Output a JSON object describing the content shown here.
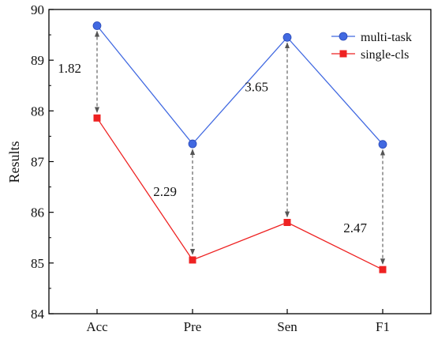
{
  "chart_data": {
    "type": "line",
    "categories": [
      "Acc",
      "Pre",
      "Sen",
      "F1"
    ],
    "series": [
      {
        "name": "multi-task",
        "values": [
          89.68,
          87.35,
          89.45,
          87.34
        ],
        "color": "#4169E1",
        "marker": "circle"
      },
      {
        "name": "single-cls",
        "values": [
          87.86,
          85.06,
          85.8,
          84.87
        ],
        "color": "#EE2222",
        "marker": "square"
      }
    ],
    "ylabel": "Results",
    "xlabel": "",
    "ylim": [
      84,
      90
    ],
    "yticks": [
      "84",
      "85",
      "86",
      "87",
      "88",
      "89",
      "90"
    ],
    "grid": false,
    "legend_position": "top-right",
    "annotations": [
      {
        "category": "Acc",
        "text": "1.82"
      },
      {
        "category": "Pre",
        "text": "2.29"
      },
      {
        "category": "Sen",
        "text": "3.65"
      },
      {
        "category": "F1",
        "text": "2.47"
      }
    ]
  }
}
